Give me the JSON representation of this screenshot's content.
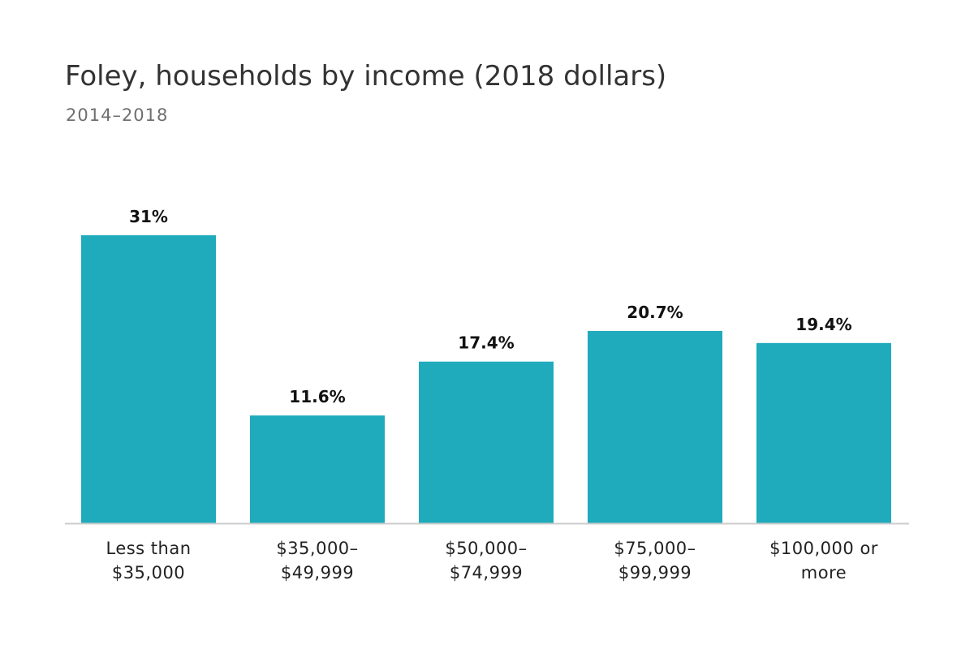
{
  "chart_data": {
    "type": "bar",
    "title": "Foley, households by income (2018 dollars)",
    "subtitle": "2014–2018",
    "categories": [
      [
        "Less than",
        "$35,000"
      ],
      [
        "$35,000–",
        "$49,999"
      ],
      [
        "$50,000–",
        "$74,999"
      ],
      [
        "$75,000–",
        "$99,999"
      ],
      [
        "$100,000 or",
        "more"
      ]
    ],
    "values": [
      31,
      11.6,
      17.4,
      20.7,
      19.4
    ],
    "value_labels": [
      "31%",
      "11.6%",
      "17.4%",
      "20.7%",
      "19.4%"
    ],
    "ylim": [
      0,
      31
    ],
    "grid": false,
    "legend": "none",
    "colors": {
      "bar": "#1fabbc",
      "baseline": "#cccccc",
      "value_label": "#111111",
      "category_label": "#222222"
    }
  }
}
